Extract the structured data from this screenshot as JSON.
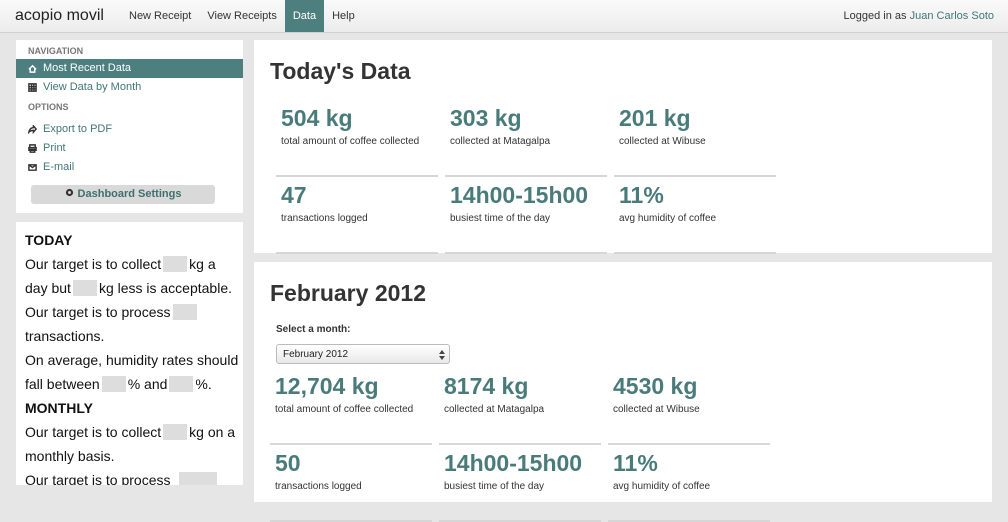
{
  "navbar": {
    "brand": "acopio movil",
    "links": [
      "New Receipt",
      "View Receipts",
      "Data",
      "Help"
    ],
    "logged_in_prefix": "Logged in as",
    "user": "Juan Carlos Soto"
  },
  "sidebar": {
    "navigation_header": "NAVIGATION",
    "navigation": [
      "Most Recent Data",
      "View Data by Month"
    ],
    "options_header": "OPTIONS",
    "options": [
      "Export to PDF",
      "Print",
      "E-mail"
    ],
    "settings_button": "Dashboard Settings"
  },
  "targets": {
    "today_header": "TODAY",
    "today": [
      [
        "Our target is to collect",
        "kg a day but",
        "kg less is acceptable."
      ],
      [
        "Our target is to process",
        "transactions."
      ],
      [
        "On average, humidity rates should fall between",
        "% and",
        "%."
      ]
    ],
    "monthly_header": "MONTHLY",
    "monthly": [
      [
        "Our target is to collect",
        "kg on a monthly basis."
      ],
      [
        "Our target is to process"
      ]
    ]
  },
  "today": {
    "title": "Today's Data",
    "stats": [
      {
        "value": "504 kg",
        "label": "total amount of coffee collected"
      },
      {
        "value": "303 kg",
        "label": "collected at Matagalpa"
      },
      {
        "value": "201 kg",
        "label": "collected at Wibuse"
      },
      {
        "value": "47",
        "label": "transactions logged"
      },
      {
        "value": "14h00-15h00",
        "label": "busiest time of the day"
      },
      {
        "value": "11%",
        "label": "avg humidity of coffee"
      }
    ]
  },
  "month": {
    "title": "February 2012",
    "select_label": "Select a month:",
    "select_value": "February 2012",
    "stats": [
      {
        "value": "12,704 kg",
        "label": "total amount of coffee collected"
      },
      {
        "value": "8174 kg",
        "label": "collected at Matagalpa"
      },
      {
        "value": "4530 kg",
        "label": "collected at Wibuse"
      },
      {
        "value": "50",
        "label": "transactions logged"
      },
      {
        "value": "14h00-15h00",
        "label": "busiest time of the day"
      },
      {
        "value": "11%",
        "label": "avg humidity of coffee"
      }
    ]
  }
}
